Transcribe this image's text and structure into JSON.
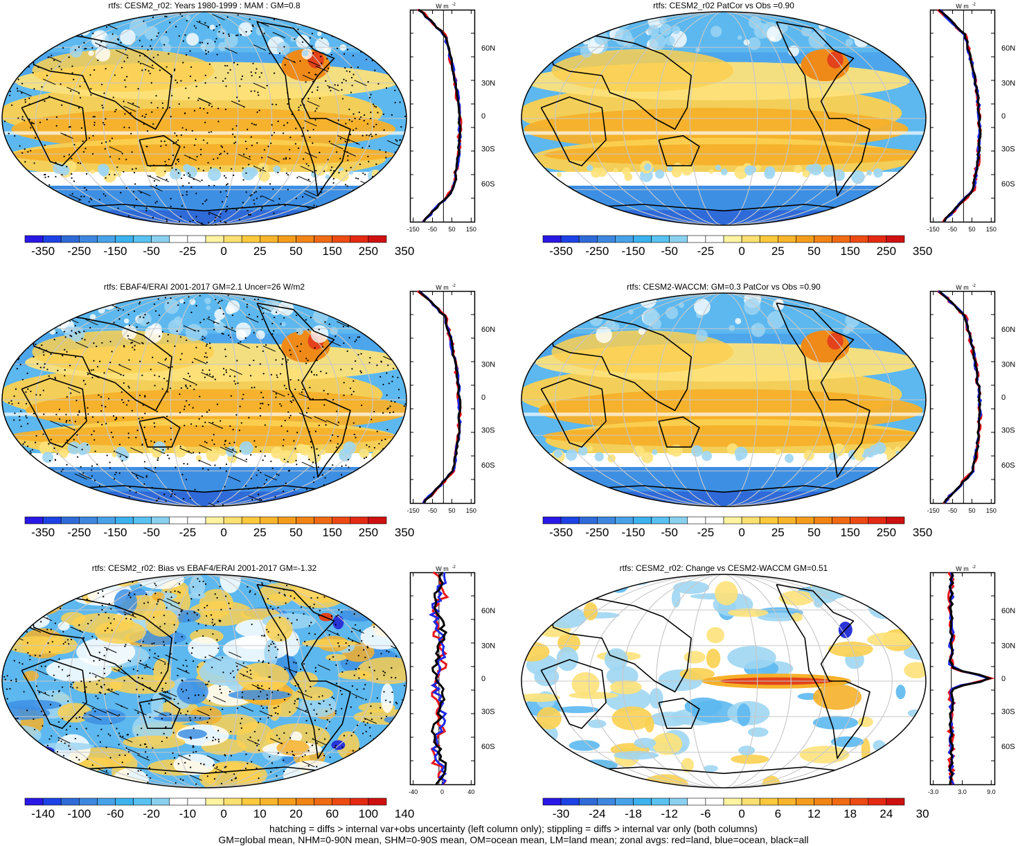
{
  "panels": [
    {
      "id": "p1",
      "title": "rtfs: CESM2_r02: Years 1980-1999 : MAM : GM=0.8",
      "scale": "main",
      "profile_ticks": [
        "-150",
        "-50",
        "50",
        "150"
      ],
      "hatching": true,
      "stippling": true,
      "pattern": "mean"
    },
    {
      "id": "p2",
      "title": "rtfs: CESM2_r02 PatCor vs Obs =0.90",
      "scale": "main",
      "profile_ticks": [
        "-150",
        "-50",
        "50",
        "150"
      ],
      "hatching": false,
      "stippling": false,
      "pattern": "mean"
    },
    {
      "id": "p3",
      "title": "rtfs: EBAF4/ERAI 2001-2017 GM=2.1 Uncer=26 W/m2",
      "scale": "main",
      "profile_ticks": [
        "-150",
        "-50",
        "50",
        "150"
      ],
      "hatching": true,
      "stippling": true,
      "pattern": "mean"
    },
    {
      "id": "p4",
      "title": "rtfs: CESM2-WACCM: GM=0.3 PatCor vs Obs =0.90",
      "scale": "main",
      "profile_ticks": [
        "-150",
        "-50",
        "50",
        "150"
      ],
      "hatching": false,
      "stippling": false,
      "pattern": "mean"
    },
    {
      "id": "p5",
      "title": "rtfs: CESM2_r02: Bias vs EBAF4/ERAI 2001-2017 GM=-1.32",
      "scale": "bias",
      "profile_ticks": [
        "-40",
        "0",
        "40"
      ],
      "hatching": true,
      "stippling": true,
      "pattern": "bias"
    },
    {
      "id": "p6",
      "title": "rtfs: CESM2_r02: Change vs CESM2-WACCM GM=0.51",
      "scale": "change",
      "profile_ticks": [
        "-3.0",
        "3.0",
        "9.0"
      ],
      "hatching": false,
      "stippling": false,
      "pattern": "change"
    }
  ],
  "colorbars": {
    "main": {
      "labels": [
        "-350",
        "-250",
        "-150",
        "-50",
        "-25",
        "0",
        "25",
        "50",
        "150",
        "250",
        "350"
      ]
    },
    "bias": {
      "labels": [
        "-140",
        "-100",
        "-60",
        "-20",
        "-10",
        "0",
        "10",
        "20",
        "60",
        "100",
        "140"
      ]
    },
    "change": {
      "labels": [
        "-30",
        "-24",
        "-18",
        "-12",
        "-6",
        "0",
        "6",
        "12",
        "18",
        "24",
        "30"
      ]
    }
  },
  "colorbar_colors": [
    "#2a18e6",
    "#1d43e6",
    "#2f6ad9",
    "#3d87e0",
    "#47a2e8",
    "#3cb2ee",
    "#59c2f1",
    "#8ad0ef",
    "#ffffff",
    "#ffffff",
    "#fef3a0",
    "#fce070",
    "#fcc93c",
    "#f8b42a",
    "#f59d1b",
    "#f28413",
    "#f06a12",
    "#ec4a12",
    "#e42a12",
    "#cf1010"
  ],
  "profile_lat_labels": [
    "60N",
    "30N",
    "0",
    "30S",
    "60S"
  ],
  "profile_unit": "W m",
  "profile_unit_sup": "-2",
  "legend_colors": {
    "land": "#e8141a",
    "ocean": "#1c28e8",
    "all": "#000000"
  },
  "footer": {
    "line1": "hatching = diffs > internal var+obs uncertainty (left column only); stippling = diffs > internal var only (both columns)",
    "line2": "GM=global mean, NHM=0-90N mean, SHM=0-90S mean, OM=ocean mean, LM=land mean; zonal avgs: red=land, blue=ocean, black=all"
  }
}
